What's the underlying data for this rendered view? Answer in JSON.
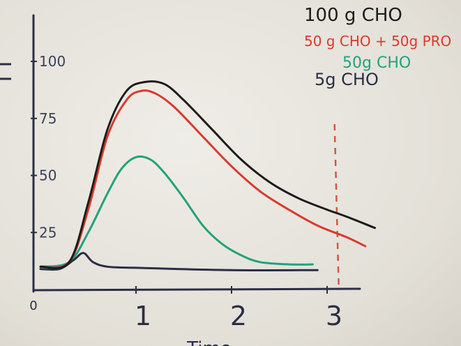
{
  "chart_data": {
    "type": "line",
    "title": "",
    "xlabel": "Time",
    "ylabel": "",
    "xlim": [
      0,
      3.5
    ],
    "ylim": [
      0,
      100
    ],
    "x_ticks": [
      {
        "value": 0,
        "label": "0"
      },
      {
        "value": 1,
        "label": "1"
      },
      {
        "value": 2,
        "label": "2"
      },
      {
        "value": 3,
        "label": "3"
      }
    ],
    "y_ticks": [
      {
        "value": 25,
        "label": "25"
      },
      {
        "value": 50,
        "label": "50"
      },
      {
        "value": 75,
        "label": "75"
      },
      {
        "value": 100,
        "label": "100"
      }
    ],
    "grid": false,
    "legend_position": "top-right",
    "vertical_reference": {
      "x": 3.1,
      "style": "dashed",
      "color": "#d05a3c"
    },
    "series": [
      {
        "name": "100 g CHO",
        "color": "#1c1c1c",
        "points": [
          [
            0,
            10
          ],
          [
            0.3,
            12
          ],
          [
            0.5,
            38
          ],
          [
            0.7,
            70
          ],
          [
            0.9,
            87
          ],
          [
            1.1,
            91
          ],
          [
            1.3,
            90
          ],
          [
            1.5,
            83
          ],
          [
            1.8,
            70
          ],
          [
            2.1,
            57
          ],
          [
            2.4,
            47
          ],
          [
            2.7,
            40
          ],
          [
            3.0,
            35
          ],
          [
            3.2,
            32
          ],
          [
            3.5,
            27
          ]
        ]
      },
      {
        "name": "50 g CHO + 50g PRO",
        "color": "#d93a2c",
        "points": [
          [
            0,
            10
          ],
          [
            0.3,
            12
          ],
          [
            0.5,
            35
          ],
          [
            0.7,
            67
          ],
          [
            0.9,
            83
          ],
          [
            1.05,
            87
          ],
          [
            1.2,
            86
          ],
          [
            1.4,
            80
          ],
          [
            1.7,
            67
          ],
          [
            2.0,
            54
          ],
          [
            2.3,
            43
          ],
          [
            2.6,
            35
          ],
          [
            2.9,
            28
          ],
          [
            3.2,
            23
          ],
          [
            3.4,
            19
          ]
        ]
      },
      {
        "name": "50g CHO",
        "color": "#22a27a",
        "points": [
          [
            0,
            10
          ],
          [
            0.3,
            12
          ],
          [
            0.5,
            25
          ],
          [
            0.7,
            42
          ],
          [
            0.85,
            53
          ],
          [
            1.0,
            58
          ],
          [
            1.15,
            57
          ],
          [
            1.3,
            51
          ],
          [
            1.5,
            40
          ],
          [
            1.7,
            28
          ],
          [
            1.9,
            20
          ],
          [
            2.1,
            15
          ],
          [
            2.3,
            12
          ],
          [
            2.6,
            11
          ],
          [
            2.85,
            11
          ]
        ]
      },
      {
        "name": "5g CHO",
        "color": "#2a2e45",
        "points": [
          [
            0,
            9
          ],
          [
            0.2,
            9
          ],
          [
            0.35,
            13
          ],
          [
            0.45,
            16
          ],
          [
            0.55,
            12
          ],
          [
            0.7,
            10
          ],
          [
            1.0,
            9.5
          ],
          [
            2.0,
            8.5
          ],
          [
            2.9,
            8.5
          ]
        ]
      }
    ]
  }
}
